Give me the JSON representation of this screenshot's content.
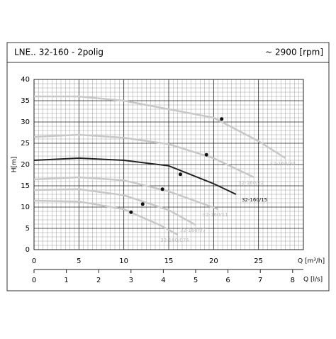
{
  "chart_data": {
    "type": "line",
    "title": "LNE.. 32-160 - 2polig",
    "subtitle": "~ 2900 [rpm]",
    "x_label": "Q [m³/h]",
    "x2_label": "Q [l/s]",
    "y_label": "H[m]",
    "xlim": [
      0,
      30
    ],
    "xticks": [
      0,
      5,
      10,
      15,
      20,
      25
    ],
    "x2lim": [
      0,
      8.333
    ],
    "x2ticks": [
      0,
      1,
      2,
      3,
      4,
      5,
      6,
      7,
      8
    ],
    "ylim": [
      0,
      40
    ],
    "yticks": [
      0,
      5,
      10,
      15,
      20,
      25,
      30,
      35,
      40
    ],
    "grid": true,
    "series": [
      {
        "name": "32-160/30",
        "color": "#c8c8c8",
        "x": [
          0,
          5,
          10,
          15,
          20,
          25,
          28
        ],
        "values": [
          36,
          36,
          35,
          33,
          31,
          25.5,
          21.5
        ],
        "point": [
          20.9,
          30.7
        ]
      },
      {
        "name": "32-160/22",
        "color": "#c8c8c8",
        "x": [
          0,
          5,
          10,
          15,
          20,
          24.5
        ],
        "values": [
          26.5,
          27,
          26.3,
          24.8,
          21.5,
          17
        ],
        "point": [
          19.2,
          22.3
        ]
      },
      {
        "name": "32-160/15",
        "color": "#222222",
        "x": [
          0,
          5,
          10,
          15,
          20,
          22.5
        ],
        "values": [
          21,
          21.5,
          21,
          19.7,
          15.5,
          13
        ],
        "point": [
          16.3,
          17.7
        ]
      },
      {
        "name": "32-160/11",
        "color": "#c8c8c8",
        "x": [
          0,
          5,
          10,
          15,
          20.5
        ],
        "values": [
          16.5,
          17,
          16.3,
          13.7,
          9.5
        ],
        "point": [
          14.3,
          14.2
        ]
      },
      {
        "name": "32-160/07",
        "color": "#c8c8c8",
        "x": [
          0,
          5,
          10,
          15,
          18
        ],
        "values": [
          14,
          14.2,
          12.8,
          9.3,
          5.8
        ],
        "point": [
          12.1,
          10.7
        ]
      },
      {
        "name": "32-160/07A",
        "color": "#c8c8c8",
        "x": [
          0,
          5,
          10,
          14,
          16
        ],
        "values": [
          11.5,
          11.3,
          9.5,
          5.8,
          3.5
        ],
        "point": [
          10.8,
          8.8
        ]
      }
    ]
  }
}
